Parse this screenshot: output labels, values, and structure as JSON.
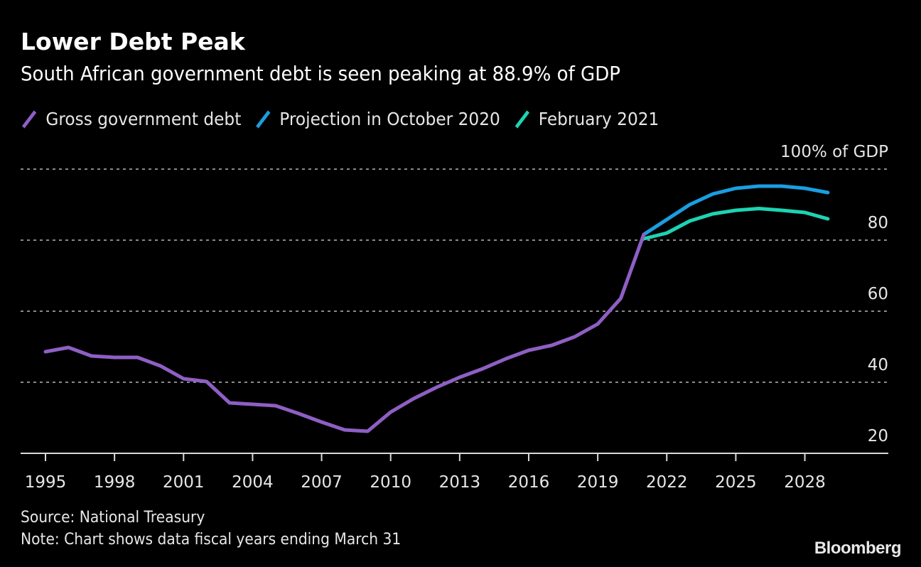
{
  "header": {
    "title": "Lower Debt Peak",
    "subtitle": "South African government debt is seen peaking at 88.9% of GDP"
  },
  "legend": [
    {
      "label": "Gross government debt",
      "color": "#8e5fc4"
    },
    {
      "label": "Projection in October 2020",
      "color": "#1a9ee0"
    },
    {
      "label": "February 2021",
      "color": "#1dd3b3"
    }
  ],
  "footer": {
    "source": "Source: National Treasury",
    "note": "Note: Chart shows data fiscal years ending March 31",
    "brand": "Bloomberg"
  },
  "chart_data": {
    "type": "line",
    "title": "Lower Debt Peak",
    "subtitle": "South African government debt is seen peaking at 88.9% of GDP",
    "xlabel": "",
    "ylabel": "% of GDP",
    "y_unit_label": "100% of GDP",
    "xlim": [
      1995,
      2029
    ],
    "ylim": [
      20,
      100
    ],
    "x_ticks": [
      1995,
      1998,
      2001,
      2004,
      2007,
      2010,
      2013,
      2016,
      2019,
      2022,
      2025,
      2028
    ],
    "y_ticks": [
      20,
      40,
      60,
      80,
      100
    ],
    "y_tick_labels": [
      "20",
      "40",
      "60",
      "80",
      "100% of GDP"
    ],
    "grid": "horizontal dotted",
    "y_axis_side": "right",
    "legend_position": "top-left",
    "series": [
      {
        "name": "Gross government debt",
        "color": "#8e5fc4",
        "x": [
          1995,
          1996,
          1997,
          1998,
          1999,
          2000,
          2001,
          2002,
          2003,
          2004,
          2005,
          2006,
          2007,
          2008,
          2009,
          2010,
          2011,
          2012,
          2013,
          2014,
          2015,
          2016,
          2017,
          2018,
          2019,
          2020,
          2021
        ],
        "values": [
          48.6,
          49.8,
          47.4,
          47.0,
          47.0,
          44.6,
          41.0,
          40.2,
          34.2,
          33.8,
          33.4,
          31.2,
          28.8,
          26.6,
          26.2,
          31.6,
          35.4,
          38.6,
          41.4,
          43.8,
          46.6,
          49.0,
          50.4,
          52.8,
          56.4,
          63.6,
          81.6
        ]
      },
      {
        "name": "Projection in October 2020",
        "color": "#1a9ee0",
        "x": [
          2021,
          2022,
          2023,
          2024,
          2025,
          2026,
          2027,
          2028,
          2029
        ],
        "values": [
          81.6,
          85.8,
          90.0,
          93.0,
          94.6,
          95.2,
          95.2,
          94.6,
          93.4
        ]
      },
      {
        "name": "February 2021",
        "color": "#1dd3b3",
        "x": [
          2021,
          2022,
          2023,
          2024,
          2025,
          2026,
          2027,
          2028,
          2029
        ],
        "values": [
          80.4,
          82.0,
          85.4,
          87.4,
          88.4,
          88.9,
          88.4,
          87.8,
          86.0
        ]
      }
    ]
  }
}
